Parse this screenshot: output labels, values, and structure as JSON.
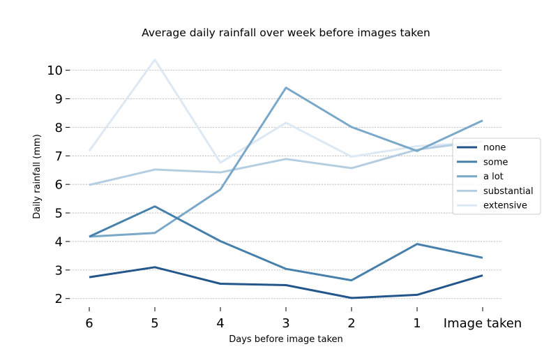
{
  "chart_data": {
    "type": "line",
    "title": "Average daily rainfall over week before images taken",
    "xlabel": "Days before image taken",
    "ylabel": "Daily rainfall (mm)",
    "categories": [
      "6",
      "5",
      "4",
      "3",
      "2",
      "1",
      "Image taken"
    ],
    "ylim": [
      1.7,
      10.7
    ],
    "yticks": [
      2,
      3,
      4,
      5,
      6,
      7,
      8,
      9,
      10
    ],
    "grid": "horizontal-dashed",
    "legend_position": "right",
    "series": [
      {
        "name": "none",
        "color": "#23568a",
        "values": [
          2.75,
          3.1,
          2.52,
          2.47,
          2.02,
          2.13,
          2.81
        ]
      },
      {
        "name": "some",
        "color": "#4680ab",
        "values": [
          4.17,
          5.23,
          4.01,
          3.04,
          2.64,
          3.91,
          3.43
        ]
      },
      {
        "name": "a lot",
        "color": "#79a8c8",
        "values": [
          4.17,
          4.3,
          5.82,
          9.39,
          8.01,
          7.17,
          8.24
        ]
      },
      {
        "name": "substantial",
        "color": "#b4cee1",
        "values": [
          5.98,
          6.52,
          6.42,
          6.89,
          6.57,
          7.22,
          7.52
        ]
      },
      {
        "name": "extensive",
        "color": "#dce8f3",
        "values": [
          7.17,
          10.37,
          6.76,
          8.16,
          6.97,
          7.34,
          7.47
        ]
      }
    ]
  }
}
